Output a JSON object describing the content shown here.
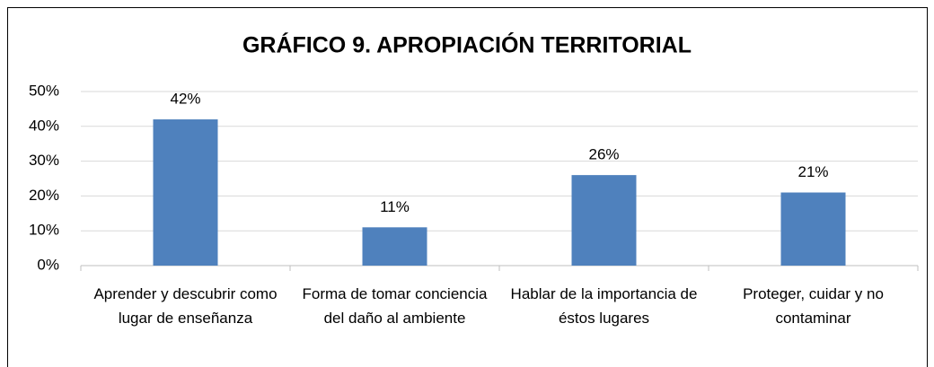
{
  "chart_data": {
    "type": "bar",
    "title": "GRÁFICO 9. APROPIACIÓN TERRITORIAL",
    "categories": [
      "Aprender y descubrir como lugar de enseñanza",
      "Forma de tomar conciencia del daño al ambiente",
      "Hablar de la importancia de éstos lugares",
      "Proteger, cuidar y no contaminar"
    ],
    "values": [
      42,
      11,
      26,
      21
    ],
    "value_labels": [
      "42%",
      "11%",
      "26%",
      "21%"
    ],
    "color": "#4f81bd",
    "ylim": [
      0,
      50
    ],
    "yticks": [
      {
        "value": 0,
        "label": "0%"
      },
      {
        "value": 10,
        "label": "10%"
      },
      {
        "value": 20,
        "label": "20%"
      },
      {
        "value": 30,
        "label": "30%"
      },
      {
        "value": 40,
        "label": "40%"
      },
      {
        "value": 50,
        "label": "50%"
      }
    ],
    "grid": true
  }
}
